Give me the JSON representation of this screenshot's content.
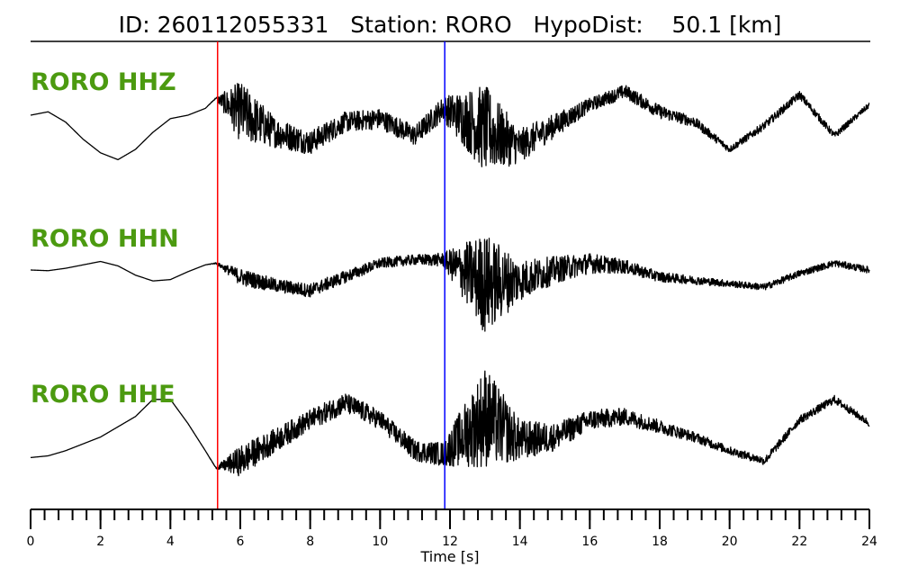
{
  "header": {
    "title": "ID: 260112055331   Station: RORO   HypoDist:    50.1 [km]"
  },
  "colors": {
    "channel_label": "#4c9a10",
    "waveform": "#000000",
    "p_pick": "#ff0000",
    "s_pick": "#0000ff"
  },
  "chart_data": {
    "type": "line",
    "title": "ID: 260112055331   Station: RORO   HypoDist:    50.1 [km]",
    "xlabel": "Time [s]",
    "ylabel": "",
    "xlim": [
      0,
      24
    ],
    "x_ticks": [
      "0",
      "2",
      "4",
      "6",
      "8",
      "10",
      "12",
      "14",
      "16",
      "18",
      "20",
      "22",
      "24"
    ],
    "minor_tick_step": 0.4,
    "grid": false,
    "picks": [
      {
        "phase": "P",
        "time": 5.35,
        "color": "#ff0000"
      },
      {
        "phase": "S",
        "time": 11.85,
        "color": "#0000ff"
      }
    ],
    "series": [
      {
        "name": "RORO HHZ",
        "x": [
          0,
          0.5,
          1,
          1.5,
          2,
          2.5,
          3,
          3.5,
          4,
          4.5,
          5,
          5.3,
          6,
          7,
          8,
          9,
          10,
          11,
          11.8,
          13,
          14,
          15,
          16,
          17,
          18,
          19,
          20,
          21,
          22,
          23,
          24
        ],
        "y": [
          0.0,
          0.1,
          -0.2,
          -0.7,
          -1.1,
          -1.3,
          -1.0,
          -0.5,
          -0.1,
          0.0,
          0.2,
          0.5,
          0.1,
          -0.5,
          -0.8,
          -0.2,
          -0.1,
          -0.6,
          0.2,
          -0.4,
          -0.9,
          -0.3,
          0.3,
          0.7,
          0.1,
          -0.2,
          -1.0,
          -0.3,
          0.6,
          -0.6,
          0.3
        ],
        "noise": [
          0,
          0,
          0,
          0,
          0,
          0,
          0,
          0,
          0,
          0,
          0,
          0.02,
          0.9,
          0.45,
          0.35,
          0.3,
          0.3,
          0.3,
          0.35,
          1.3,
          0.5,
          0.35,
          0.2,
          0.2,
          0.2,
          0.15,
          0.1,
          0.12,
          0.12,
          0.1,
          0.08
        ]
      },
      {
        "name": "RORO HHN",
        "x": [
          0,
          0.5,
          1,
          1.5,
          2,
          2.5,
          3,
          3.5,
          4,
          4.5,
          5,
          5.3,
          6,
          7,
          8,
          9,
          10,
          11,
          11.8,
          13,
          14,
          15,
          16,
          17,
          18,
          19,
          20,
          21,
          22,
          23,
          24
        ],
        "y": [
          0.0,
          -0.02,
          0.05,
          0.15,
          0.25,
          0.12,
          -0.15,
          -0.32,
          -0.28,
          -0.05,
          0.15,
          0.2,
          -0.2,
          -0.45,
          -0.6,
          -0.2,
          0.2,
          0.3,
          0.3,
          -0.4,
          -0.3,
          0.0,
          0.2,
          0.1,
          -0.2,
          -0.3,
          -0.4,
          -0.5,
          -0.1,
          0.2,
          0.0
        ],
        "noise": [
          0,
          0,
          0,
          0,
          0,
          0,
          0,
          0,
          0,
          0,
          0,
          0.02,
          0.25,
          0.2,
          0.2,
          0.18,
          0.15,
          0.15,
          0.2,
          1.5,
          0.6,
          0.4,
          0.3,
          0.2,
          0.15,
          0.12,
          0.1,
          0.1,
          0.1,
          0.1,
          0.1
        ]
      },
      {
        "name": "RORO HHE",
        "x": [
          0,
          0.5,
          1,
          1.5,
          2,
          2.5,
          3,
          3.5,
          4,
          4.5,
          5,
          5.3,
          6,
          7,
          8,
          9,
          10,
          11,
          11.8,
          13,
          14,
          15,
          16,
          17,
          18,
          19,
          20,
          21,
          22,
          23,
          24
        ],
        "y": [
          -0.8,
          -0.75,
          -0.6,
          -0.4,
          -0.2,
          0.1,
          0.4,
          0.9,
          0.9,
          0.2,
          -0.6,
          -1.1,
          -0.9,
          -0.3,
          0.3,
          0.8,
          0.3,
          -0.6,
          -0.7,
          0.4,
          -0.3,
          -0.2,
          0.3,
          0.4,
          0.1,
          -0.2,
          -0.6,
          -0.9,
          0.3,
          0.9,
          0.2
        ],
        "noise": [
          0,
          0,
          0,
          0,
          0,
          0,
          0,
          0,
          0,
          0,
          0,
          0.02,
          0.45,
          0.35,
          0.3,
          0.3,
          0.28,
          0.3,
          0.35,
          1.5,
          0.6,
          0.4,
          0.3,
          0.25,
          0.2,
          0.15,
          0.12,
          0.12,
          0.12,
          0.12,
          0.1
        ]
      }
    ]
  }
}
